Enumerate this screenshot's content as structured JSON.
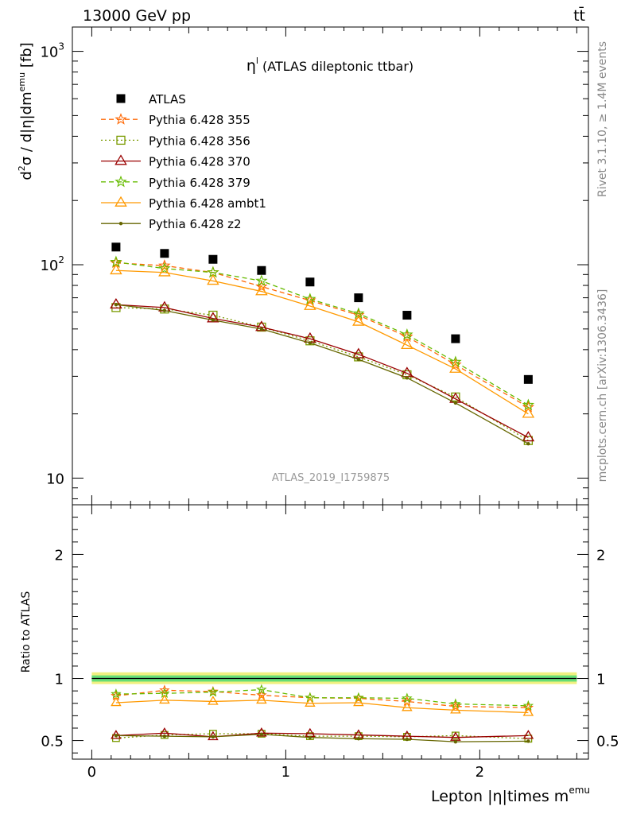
{
  "header": {
    "left": "13000 GeV pp",
    "right": "tt̄"
  },
  "side_labels": {
    "version": "Rivet 3.1.10, ≥ 1.4M events",
    "source": "mcplots.cern.ch [arXiv:1306.3436]"
  },
  "chart_data": [
    {
      "type": "scatter",
      "panel": "main",
      "title": "η^l (ATLAS dileptonic ttbar)",
      "title_main": "η",
      "title_sup": "l",
      "title_rest": " (ATLAS dileptonic ttbar)",
      "watermark": "ATLAS_2019_I1759875",
      "ylabel": "d²σ / d|η|dm^emu [fb]",
      "ylabel_parts": {
        "a": "d",
        "b": "2",
        "c": "σ / d|η|dm",
        "d": "emu",
        "e": " [fb]"
      },
      "yscale": "log",
      "ylim": [
        7.5,
        1300
      ],
      "xlim": [
        -0.1,
        2.56
      ],
      "y_tick_labels": [
        "10",
        "10²",
        "10³"
      ],
      "y_tick_values": [
        10,
        100,
        1000
      ],
      "x": [
        0.125,
        0.375,
        0.625,
        0.875,
        1.125,
        1.375,
        1.625,
        1.875,
        2.25
      ],
      "series": [
        {
          "name": "ATLAS",
          "color": "#000000",
          "marker": "square",
          "values": [
            121,
            113,
            106,
            94,
            83,
            70,
            58,
            45,
            29
          ]
        },
        {
          "name": "Pythia 6.428 355",
          "color": "#ff6600",
          "marker": "star",
          "dash": "dashed",
          "values": [
            102,
            99,
            92,
            79,
            68,
            58,
            46,
            34,
            21.5
          ]
        },
        {
          "name": "Pythia 6.428 356",
          "color": "#7a9a00",
          "marker": "open-square",
          "dash": "dotted",
          "values": [
            63,
            62,
            58,
            51,
            44,
            37,
            30.5,
            24,
            15
          ]
        },
        {
          "name": "Pythia 6.428 370",
          "color": "#990000",
          "marker": "open-triangle",
          "dash": "solid",
          "values": [
            65,
            63,
            56,
            51,
            45,
            38,
            31,
            23.5,
            15.5
          ]
        },
        {
          "name": "Pythia 6.428 379",
          "color": "#66bb00",
          "marker": "star",
          "dash": "dashed",
          "values": [
            103,
            96,
            92,
            84,
            69,
            59,
            47,
            35,
            22
          ]
        },
        {
          "name": "Pythia 6.428 ambt1",
          "color": "#ff9900",
          "marker": "open-triangle",
          "dash": "solid",
          "values": [
            94,
            92,
            84,
            75,
            64,
            54,
            42,
            32.5,
            20
          ]
        },
        {
          "name": "Pythia 6.428 z2",
          "color": "#666600",
          "marker": "dot",
          "dash": "solid",
          "values": [
            65,
            61,
            55,
            50,
            43,
            36,
            29.5,
            22.5,
            14.5
          ]
        }
      ]
    },
    {
      "type": "line",
      "panel": "ratio",
      "ylabel": "Ratio to ATLAS",
      "xlabel": "Lepton |η|times m^emu",
      "xlabel_main": "Lepton |η|times m",
      "xlabel_sup": "emu",
      "ylim": [
        0.35,
        2.4
      ],
      "xlim": [
        -0.1,
        2.56
      ],
      "y_tick_labels": [
        "0.5",
        "1",
        "2"
      ],
      "y_tick_values": [
        0.5,
        1,
        2
      ],
      "x_tick_labels": [
        "0",
        "1",
        "2"
      ],
      "x_tick_values": [
        0,
        1,
        2
      ],
      "band": {
        "outer": [
          0.955,
          1.05
        ],
        "inner": [
          0.975,
          1.025
        ],
        "outer_color": "#f0f080",
        "inner_color": "#66dd77"
      },
      "x": [
        0.125,
        0.375,
        0.625,
        0.875,
        1.125,
        1.375,
        1.625,
        1.875,
        2.25
      ],
      "series": [
        {
          "name": "Pythia 6.428 355",
          "color": "#ff6600",
          "marker": "star",
          "dash": "dashed",
          "values": [
            0.86,
            0.905,
            0.895,
            0.865,
            0.845,
            0.84,
            0.815,
            0.775,
            0.765
          ]
        },
        {
          "name": "Pythia 6.428 356",
          "color": "#7a9a00",
          "marker": "open-square",
          "dash": "dotted",
          "values": [
            0.52,
            0.545,
            0.555,
            0.555,
            0.535,
            0.535,
            0.53,
            0.54,
            0.515
          ]
        },
        {
          "name": "Pythia 6.428 370",
          "color": "#990000",
          "marker": "open-triangle",
          "dash": "solid",
          "values": [
            0.54,
            0.56,
            0.53,
            0.56,
            0.555,
            0.545,
            0.535,
            0.525,
            0.54
          ]
        },
        {
          "name": "Pythia 6.428 379",
          "color": "#66bb00",
          "marker": "star",
          "dash": "dashed",
          "values": [
            0.875,
            0.88,
            0.89,
            0.91,
            0.845,
            0.845,
            0.84,
            0.795,
            0.78
          ]
        },
        {
          "name": "Pythia 6.428 ambt1",
          "color": "#ff9900",
          "marker": "open-triangle",
          "dash": "solid",
          "values": [
            0.805,
            0.825,
            0.815,
            0.825,
            0.8,
            0.805,
            0.765,
            0.745,
            0.725
          ]
        },
        {
          "name": "Pythia 6.428 z2",
          "color": "#666600",
          "marker": "dot",
          "dash": "solid",
          "values": [
            0.54,
            0.535,
            0.53,
            0.55,
            0.525,
            0.515,
            0.51,
            0.49,
            0.495
          ]
        }
      ]
    }
  ]
}
